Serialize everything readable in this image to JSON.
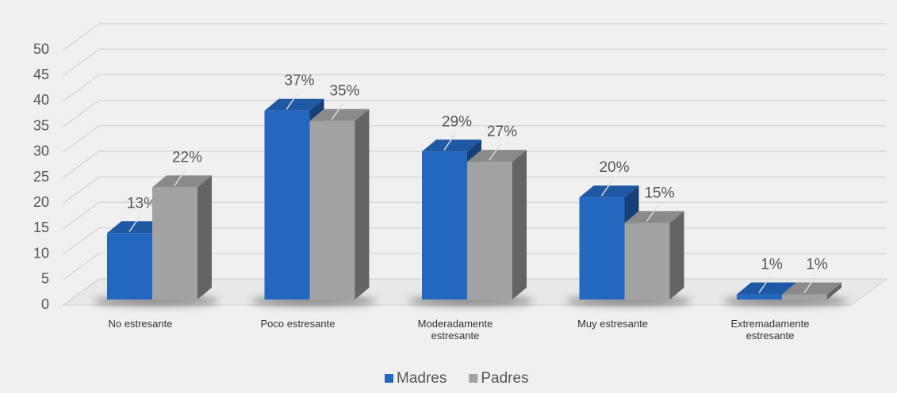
{
  "chart_data": {
    "type": "bar3d",
    "categories": [
      "No estresante",
      "Poco estresante",
      "Moderadamente estresante",
      "Muy estresante",
      "Extremadamente estresante"
    ],
    "series": [
      {
        "name": "Madres",
        "color": "#2467c0",
        "values": [
          13,
          37,
          29,
          20,
          1
        ],
        "value_labels": [
          "13%",
          "37%",
          "29%",
          "20%",
          "1%"
        ]
      },
      {
        "name": "Padres",
        "color": "#a2a2a2",
        "values": [
          22,
          35,
          27,
          15,
          1
        ],
        "value_labels": [
          "22%",
          "35%",
          "27%",
          "15%",
          "1%"
        ]
      }
    ],
    "ylim": [
      0,
      50
    ],
    "yticks": [
      0,
      5,
      10,
      15,
      20,
      25,
      30,
      35,
      40,
      45,
      50
    ],
    "grid": true,
    "legend": "bottom"
  }
}
